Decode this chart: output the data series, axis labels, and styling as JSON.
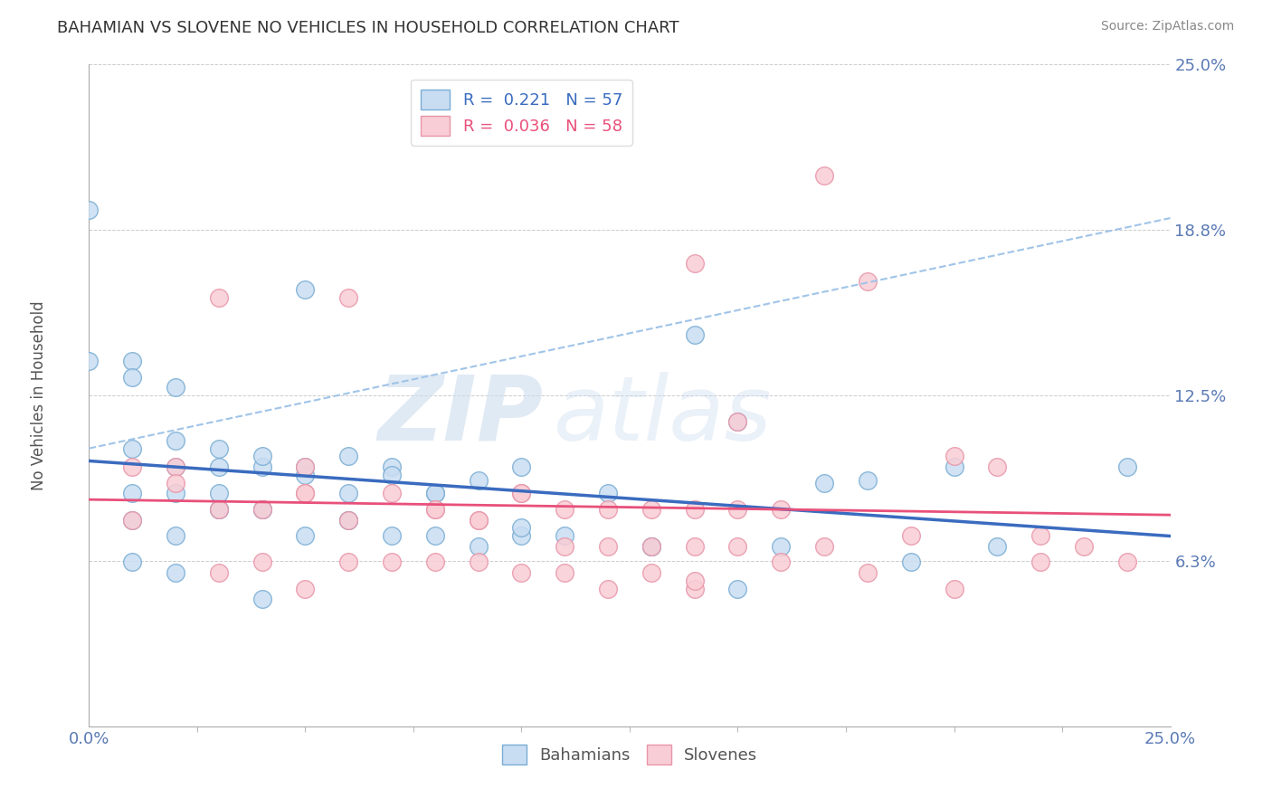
{
  "title": "BAHAMIAN VS SLOVENE NO VEHICLES IN HOUSEHOLD CORRELATION CHART",
  "source": "Source: ZipAtlas.com",
  "ylabel": "No Vehicles in Household",
  "xlim": [
    0.0,
    0.25
  ],
  "ylim": [
    0.0,
    0.25
  ],
  "ytick_vals": [
    0.0,
    0.0625,
    0.125,
    0.1875,
    0.25
  ],
  "ytick_labels": [
    "",
    "6.3%",
    "12.5%",
    "18.8%",
    "25.0%"
  ],
  "xtick_vals": [
    0.0,
    0.25
  ],
  "xtick_labels": [
    "0.0%",
    "25.0%"
  ],
  "blue_R": "0.221",
  "blue_N": "57",
  "pink_R": "0.036",
  "pink_N": "58",
  "blue_fill_color": "#c8ddf2",
  "blue_edge_color": "#7aadd4",
  "pink_fill_color": "#f9cdd5",
  "pink_edge_color": "#e895a8",
  "blue_line_color": "#3a6bbf",
  "pink_line_color": "#e8507a",
  "blue_dash_color": "#a0c4e8",
  "title_fontsize": 13,
  "label_fontsize": 12,
  "tick_fontsize": 13,
  "legend_fontsize": 13,
  "watermark_zip": "ZIP",
  "watermark_atlas": "atlas",
  "background_color": "#ffffff",
  "grid_color": "#cccccc",
  "blue_scatter_x": [
    0.05,
    0.14,
    0.0,
    0.01,
    0.02,
    0.02,
    0.03,
    0.04,
    0.05,
    0.06,
    0.07,
    0.08,
    0.09,
    0.1,
    0.12,
    0.15,
    0.18,
    0.2,
    0.03,
    0.01,
    0.01,
    0.02,
    0.02,
    0.03,
    0.03,
    0.04,
    0.04,
    0.05,
    0.06,
    0.07,
    0.08,
    0.09,
    0.1,
    0.11,
    0.13,
    0.15,
    0.16,
    0.19,
    0.21,
    0.01,
    0.02,
    0.04,
    0.06,
    0.24,
    0.0,
    0.01,
    0.01,
    0.02,
    0.03,
    0.04,
    0.05,
    0.06,
    0.07,
    0.08,
    0.1,
    0.13,
    0.17
  ],
  "blue_scatter_y": [
    0.165,
    0.148,
    0.138,
    0.105,
    0.108,
    0.098,
    0.098,
    0.098,
    0.095,
    0.102,
    0.098,
    0.088,
    0.093,
    0.098,
    0.088,
    0.115,
    0.093,
    0.098,
    0.082,
    0.088,
    0.078,
    0.088,
    0.072,
    0.088,
    0.082,
    0.082,
    0.082,
    0.072,
    0.078,
    0.072,
    0.072,
    0.068,
    0.072,
    0.072,
    0.068,
    0.052,
    0.068,
    0.062,
    0.068,
    0.062,
    0.058,
    0.048,
    0.078,
    0.098,
    0.195,
    0.138,
    0.132,
    0.128,
    0.105,
    0.102,
    0.098,
    0.088,
    0.095,
    0.088,
    0.075,
    0.068,
    0.092
  ],
  "pink_scatter_x": [
    0.01,
    0.02,
    0.03,
    0.05,
    0.06,
    0.08,
    0.09,
    0.1,
    0.11,
    0.12,
    0.13,
    0.14,
    0.15,
    0.17,
    0.18,
    0.19,
    0.22,
    0.01,
    0.02,
    0.03,
    0.04,
    0.05,
    0.06,
    0.07,
    0.08,
    0.09,
    0.1,
    0.11,
    0.12,
    0.13,
    0.14,
    0.15,
    0.16,
    0.03,
    0.04,
    0.05,
    0.06,
    0.07,
    0.08,
    0.09,
    0.1,
    0.11,
    0.12,
    0.13,
    0.14,
    0.15,
    0.16,
    0.17,
    0.18,
    0.2,
    0.22,
    0.24,
    0.05,
    0.14,
    0.21,
    0.23,
    0.14,
    0.2
  ],
  "pink_scatter_y": [
    0.098,
    0.098,
    0.162,
    0.088,
    0.162,
    0.082,
    0.078,
    0.088,
    0.082,
    0.082,
    0.082,
    0.082,
    0.082,
    0.208,
    0.168,
    0.072,
    0.072,
    0.078,
    0.092,
    0.082,
    0.082,
    0.088,
    0.078,
    0.088,
    0.082,
    0.078,
    0.088,
    0.068,
    0.068,
    0.068,
    0.068,
    0.115,
    0.082,
    0.058,
    0.062,
    0.052,
    0.062,
    0.062,
    0.062,
    0.062,
    0.058,
    0.058,
    0.052,
    0.058,
    0.052,
    0.068,
    0.062,
    0.068,
    0.058,
    0.052,
    0.062,
    0.062,
    0.098,
    0.175,
    0.098,
    0.068,
    0.055,
    0.102
  ]
}
